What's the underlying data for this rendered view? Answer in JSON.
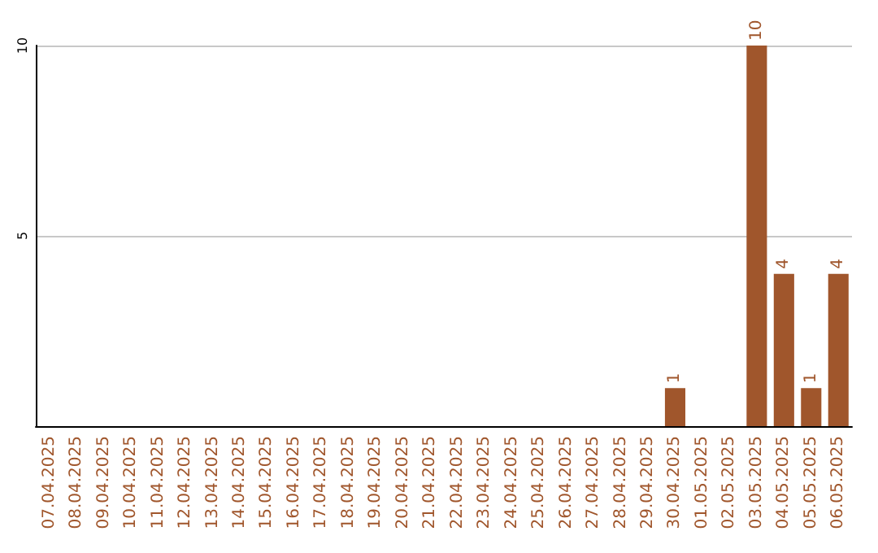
{
  "chart_data": {
    "type": "bar",
    "categories": [
      "07.04.2025",
      "08.04.2025",
      "09.04.2025",
      "10.04.2025",
      "11.04.2025",
      "12.04.2025",
      "13.04.2025",
      "14.04.2025",
      "15.04.2025",
      "16.04.2025",
      "17.04.2025",
      "18.04.2025",
      "19.04.2025",
      "20.04.2025",
      "21.04.2025",
      "22.04.2025",
      "23.04.2025",
      "24.04.2025",
      "25.04.2025",
      "26.04.2025",
      "27.04.2025",
      "28.04.2025",
      "29.04.2025",
      "30.04.2025",
      "01.05.2025",
      "02.05.2025",
      "03.05.2025",
      "04.05.2025",
      "05.05.2025",
      "06.05.2025"
    ],
    "values": [
      0,
      0,
      0,
      0,
      0,
      0,
      0,
      0,
      0,
      0,
      0,
      0,
      0,
      0,
      0,
      0,
      0,
      0,
      0,
      0,
      0,
      0,
      0,
      1,
      0,
      0,
      10,
      4,
      1,
      4
    ],
    "value_labels": [
      null,
      null,
      null,
      null,
      null,
      null,
      null,
      null,
      null,
      null,
      null,
      null,
      null,
      null,
      null,
      null,
      null,
      null,
      null,
      null,
      null,
      null,
      null,
      "1",
      null,
      null,
      "10",
      "4",
      "1",
      "4"
    ],
    "color": "#a0562c",
    "ylim": [
      0,
      10
    ],
    "yticks": [
      5,
      10
    ],
    "grid": "y"
  }
}
